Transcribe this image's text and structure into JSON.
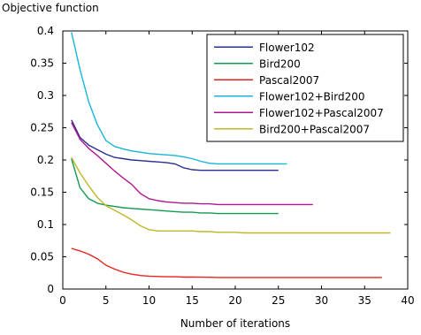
{
  "chart_data": {
    "type": "line",
    "ylabel": "Objective function",
    "xlabel": "Number of iterations",
    "xlim": [
      0,
      40
    ],
    "ylim": [
      0,
      0.4
    ],
    "xticks": [
      "0",
      "5",
      "10",
      "15",
      "20",
      "25",
      "30",
      "35",
      "40"
    ],
    "yticks": [
      "0",
      "0.05",
      "0.1",
      "0.15",
      "0.2",
      "0.25",
      "0.3",
      "0.35",
      "0.4"
    ],
    "grid": false,
    "legend_position": "top-right",
    "series": [
      {
        "name": "Flower102",
        "color": "#2b2f8f",
        "x": [
          1,
          2,
          3,
          4,
          5,
          6,
          7,
          8,
          9,
          10,
          11,
          12,
          13,
          14,
          15,
          16,
          17,
          18,
          19,
          20,
          21,
          22,
          23,
          24,
          25
        ],
        "y": [
          0.262,
          0.235,
          0.223,
          0.216,
          0.209,
          0.204,
          0.202,
          0.2,
          0.199,
          0.198,
          0.197,
          0.196,
          0.194,
          0.188,
          0.185,
          0.184,
          0.184,
          0.184,
          0.184,
          0.184,
          0.184,
          0.184,
          0.184,
          0.184,
          0.184
        ]
      },
      {
        "name": "Bird200",
        "color": "#129b50",
        "x": [
          1,
          2,
          3,
          4,
          5,
          6,
          7,
          8,
          9,
          10,
          11,
          12,
          13,
          14,
          15,
          16,
          17,
          18,
          19,
          20,
          21,
          22,
          23,
          24,
          25
        ],
        "y": [
          0.202,
          0.157,
          0.14,
          0.133,
          0.13,
          0.128,
          0.126,
          0.125,
          0.124,
          0.123,
          0.122,
          0.121,
          0.12,
          0.119,
          0.119,
          0.118,
          0.118,
          0.117,
          0.117,
          0.117,
          0.117,
          0.117,
          0.117,
          0.117,
          0.117
        ]
      },
      {
        "name": "Pascal2007",
        "color": "#e8231f",
        "x": [
          1,
          2,
          3,
          4,
          5,
          6,
          7,
          8,
          9,
          10,
          11,
          12,
          13,
          14,
          15,
          16,
          17,
          18,
          19,
          20,
          21,
          22,
          23,
          24,
          25,
          26,
          27,
          28,
          29,
          30,
          31,
          32,
          33,
          34,
          35,
          36,
          37
        ],
        "y": [
          0.063,
          0.059,
          0.054,
          0.047,
          0.037,
          0.031,
          0.026,
          0.023,
          0.021,
          0.02,
          0.0195,
          0.019,
          0.019,
          0.0185,
          0.0185,
          0.0183,
          0.0182,
          0.018,
          0.018,
          0.018,
          0.018,
          0.018,
          0.018,
          0.018,
          0.018,
          0.018,
          0.018,
          0.018,
          0.018,
          0.018,
          0.018,
          0.018,
          0.018,
          0.018,
          0.018,
          0.018,
          0.018
        ]
      },
      {
        "name": "Flower102+Bird200",
        "color": "#15b5d9",
        "x": [
          1,
          2,
          3,
          4,
          5,
          6,
          7,
          8,
          9,
          10,
          11,
          12,
          13,
          14,
          15,
          16,
          17,
          18,
          19,
          20,
          21,
          22,
          23,
          24,
          25,
          26
        ],
        "y": [
          0.398,
          0.34,
          0.29,
          0.255,
          0.23,
          0.221,
          0.217,
          0.214,
          0.212,
          0.21,
          0.209,
          0.208,
          0.207,
          0.205,
          0.202,
          0.198,
          0.195,
          0.194,
          0.194,
          0.194,
          0.194,
          0.194,
          0.194,
          0.194,
          0.194,
          0.194
        ]
      },
      {
        "name": "Flower102+Pascal2007",
        "color": "#b0158e",
        "x": [
          1,
          2,
          3,
          4,
          5,
          6,
          7,
          8,
          9,
          10,
          11,
          12,
          13,
          14,
          15,
          16,
          17,
          18,
          19,
          20,
          21,
          22,
          23,
          24,
          25,
          26,
          27,
          28,
          29
        ],
        "y": [
          0.258,
          0.232,
          0.218,
          0.207,
          0.195,
          0.183,
          0.172,
          0.162,
          0.148,
          0.14,
          0.137,
          0.135,
          0.134,
          0.133,
          0.133,
          0.132,
          0.132,
          0.131,
          0.131,
          0.131,
          0.131,
          0.131,
          0.131,
          0.131,
          0.131,
          0.131,
          0.131,
          0.131,
          0.131
        ]
      },
      {
        "name": "Bird200+Pascal2007",
        "color": "#bfb729",
        "x": [
          1,
          2,
          3,
          4,
          5,
          6,
          7,
          8,
          9,
          10,
          11,
          12,
          13,
          14,
          15,
          16,
          17,
          18,
          19,
          20,
          21,
          22,
          23,
          24,
          25,
          26,
          27,
          28,
          29,
          30,
          31,
          32,
          33,
          34,
          35,
          36,
          37,
          38
        ],
        "y": [
          0.204,
          0.18,
          0.16,
          0.142,
          0.129,
          0.122,
          0.115,
          0.107,
          0.098,
          0.092,
          0.09,
          0.09,
          0.09,
          0.09,
          0.09,
          0.089,
          0.089,
          0.088,
          0.088,
          0.088,
          0.087,
          0.087,
          0.087,
          0.087,
          0.087,
          0.087,
          0.087,
          0.087,
          0.087,
          0.087,
          0.087,
          0.087,
          0.087,
          0.087,
          0.087,
          0.087,
          0.087,
          0.087
        ]
      }
    ]
  }
}
